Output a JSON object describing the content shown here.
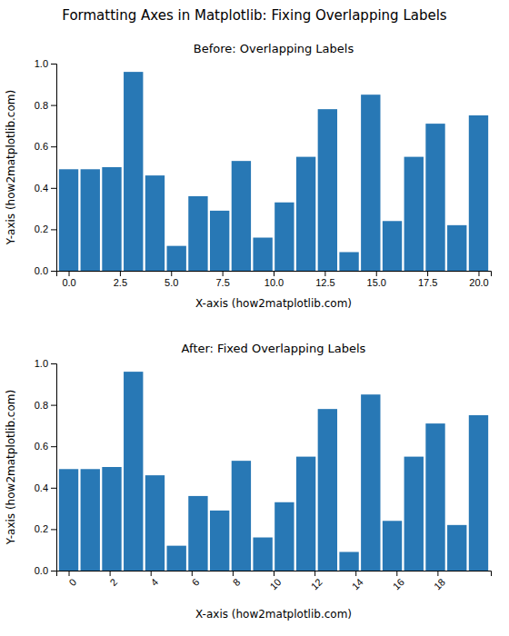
{
  "title": "Formatting Axes in Matplotlib: Fixing Overlapping Labels",
  "chart_data": [
    {
      "type": "bar",
      "title": "Before: Overlapping Labels",
      "x_label": "X-axis (how2matplotlib.com)",
      "y_label": "Y-axis (how2matplotlib.com)",
      "x": [
        0,
        1.0526315789473684,
        2.1052631578947367,
        3.1578947368421053,
        4.2105263157894735,
        5.2631578947368425,
        6.315789473684211,
        7.368421052631579,
        8.421052631578947,
        9.473684210526315,
        10.526315789473685,
        11.578947368421053,
        12.631578947368421,
        13.68421052631579,
        14.736842105263158,
        15.789473684210527,
        16.842105263157894,
        17.894736842105264,
        18.94736842105263,
        20.0
      ],
      "values": [
        0.49,
        0.49,
        0.5,
        0.96,
        0.46,
        0.12,
        0.36,
        0.29,
        0.53,
        0.16,
        0.33,
        0.55,
        0.78,
        0.09,
        0.85,
        0.24,
        0.55,
        0.71,
        0.22,
        0.75
      ],
      "color": "#2878b5",
      "xlim": [
        -0.6,
        20.6
      ],
      "xticks": [
        {
          "value": 0,
          "label": "0.0"
        },
        2.5,
        {
          "value": 5,
          "label": "5.0"
        },
        7.5,
        {
          "value": 10,
          "label": "10.0"
        },
        12.5,
        {
          "value": 15,
          "label": "15.0"
        },
        17.5,
        {
          "value": 20,
          "label": "20.0"
        }
      ],
      "ylim": [
        0,
        1.0
      ],
      "yticks": [
        {
          "value": 0,
          "label": "0.0"
        },
        0.2,
        0.4,
        0.6,
        0.8,
        {
          "value": 1,
          "label": "1.0"
        }
      ]
    },
    {
      "type": "bar",
      "title": "After: Fixed Overlapping Labels",
      "x_label": "X-axis (how2matplotlib.com)",
      "y_label": "Y-axis (how2matplotlib.com)",
      "x": [
        0,
        1.0526315789473684,
        2.1052631578947367,
        3.1578947368421053,
        4.2105263157894735,
        5.2631578947368425,
        6.315789473684211,
        7.368421052631579,
        8.421052631578947,
        9.473684210526315,
        10.526315789473685,
        11.578947368421053,
        12.631578947368421,
        13.68421052631579,
        14.736842105263158,
        15.789473684210527,
        16.842105263157894,
        17.894736842105264,
        18.94736842105263,
        20.0
      ],
      "values": [
        0.49,
        0.49,
        0.5,
        0.96,
        0.46,
        0.12,
        0.36,
        0.29,
        0.53,
        0.16,
        0.33,
        0.55,
        0.78,
        0.09,
        0.85,
        0.24,
        0.55,
        0.71,
        0.22,
        0.75
      ],
      "color": "#2878b5",
      "xlim": [
        -0.6,
        20.6
      ],
      "xticks": [
        0,
        2,
        4,
        6,
        8,
        10,
        12,
        14,
        16,
        18
      ],
      "ylim": [
        0,
        1.0
      ],
      "yticks": [
        {
          "value": 0,
          "label": "0.0"
        },
        0.2,
        0.4,
        0.6,
        0.8,
        {
          "value": 1,
          "label": "1.0"
        }
      ]
    }
  ]
}
